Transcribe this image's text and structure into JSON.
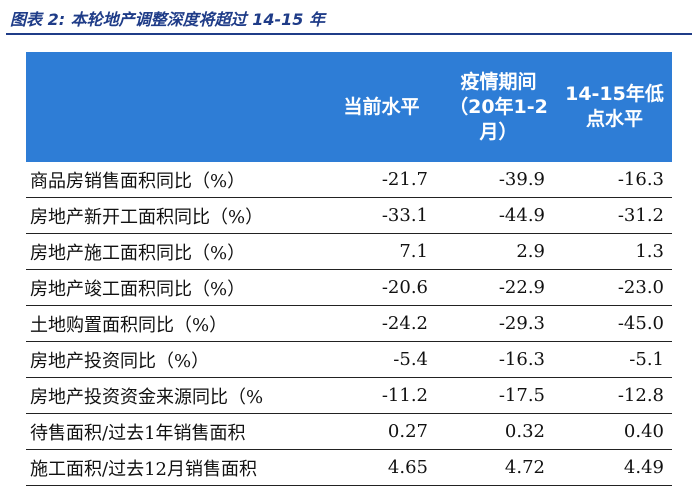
{
  "caption": "图表 2:  本轮地产调整深度将超过 14-15 年",
  "colors": {
    "header_bg": "#2e7dd6",
    "caption": "#1f3c88"
  },
  "columns": [
    "当前水平",
    "疫情期间\n（20年1-2\n月）",
    "14-15年低\n点水平"
  ],
  "rows": [
    {
      "label": "商品房销售面积同比（%）",
      "values": [
        "-21.7",
        "-39.9",
        "-16.3"
      ]
    },
    {
      "label": "房地产新开工面积同比（%）",
      "values": [
        "-33.1",
        "-44.9",
        "-31.2"
      ]
    },
    {
      "label": "房地产施工面积同比（%）",
      "values": [
        "7.1",
        "2.9",
        "1.3"
      ]
    },
    {
      "label": "房地产竣工面积同比（%）",
      "values": [
        "-20.6",
        "-22.9",
        "-23.0"
      ]
    },
    {
      "label": "土地购置面积同比（%）",
      "values": [
        "-24.2",
        "-29.3",
        "-45.0"
      ]
    },
    {
      "label": "房地产投资同比（%）",
      "values": [
        "-5.4",
        "-16.3",
        "-5.1"
      ]
    },
    {
      "label": "房地产投资资金来源同比（%",
      "values": [
        "-11.2",
        "-17.5",
        "-12.8"
      ]
    },
    {
      "label": "待售面积/过去1年销售面积",
      "values": [
        "0.27",
        "0.32",
        "0.40"
      ]
    },
    {
      "label": "施工面积/过去12月销售面积",
      "values": [
        "4.65",
        "4.72",
        "4.49"
      ]
    }
  ]
}
